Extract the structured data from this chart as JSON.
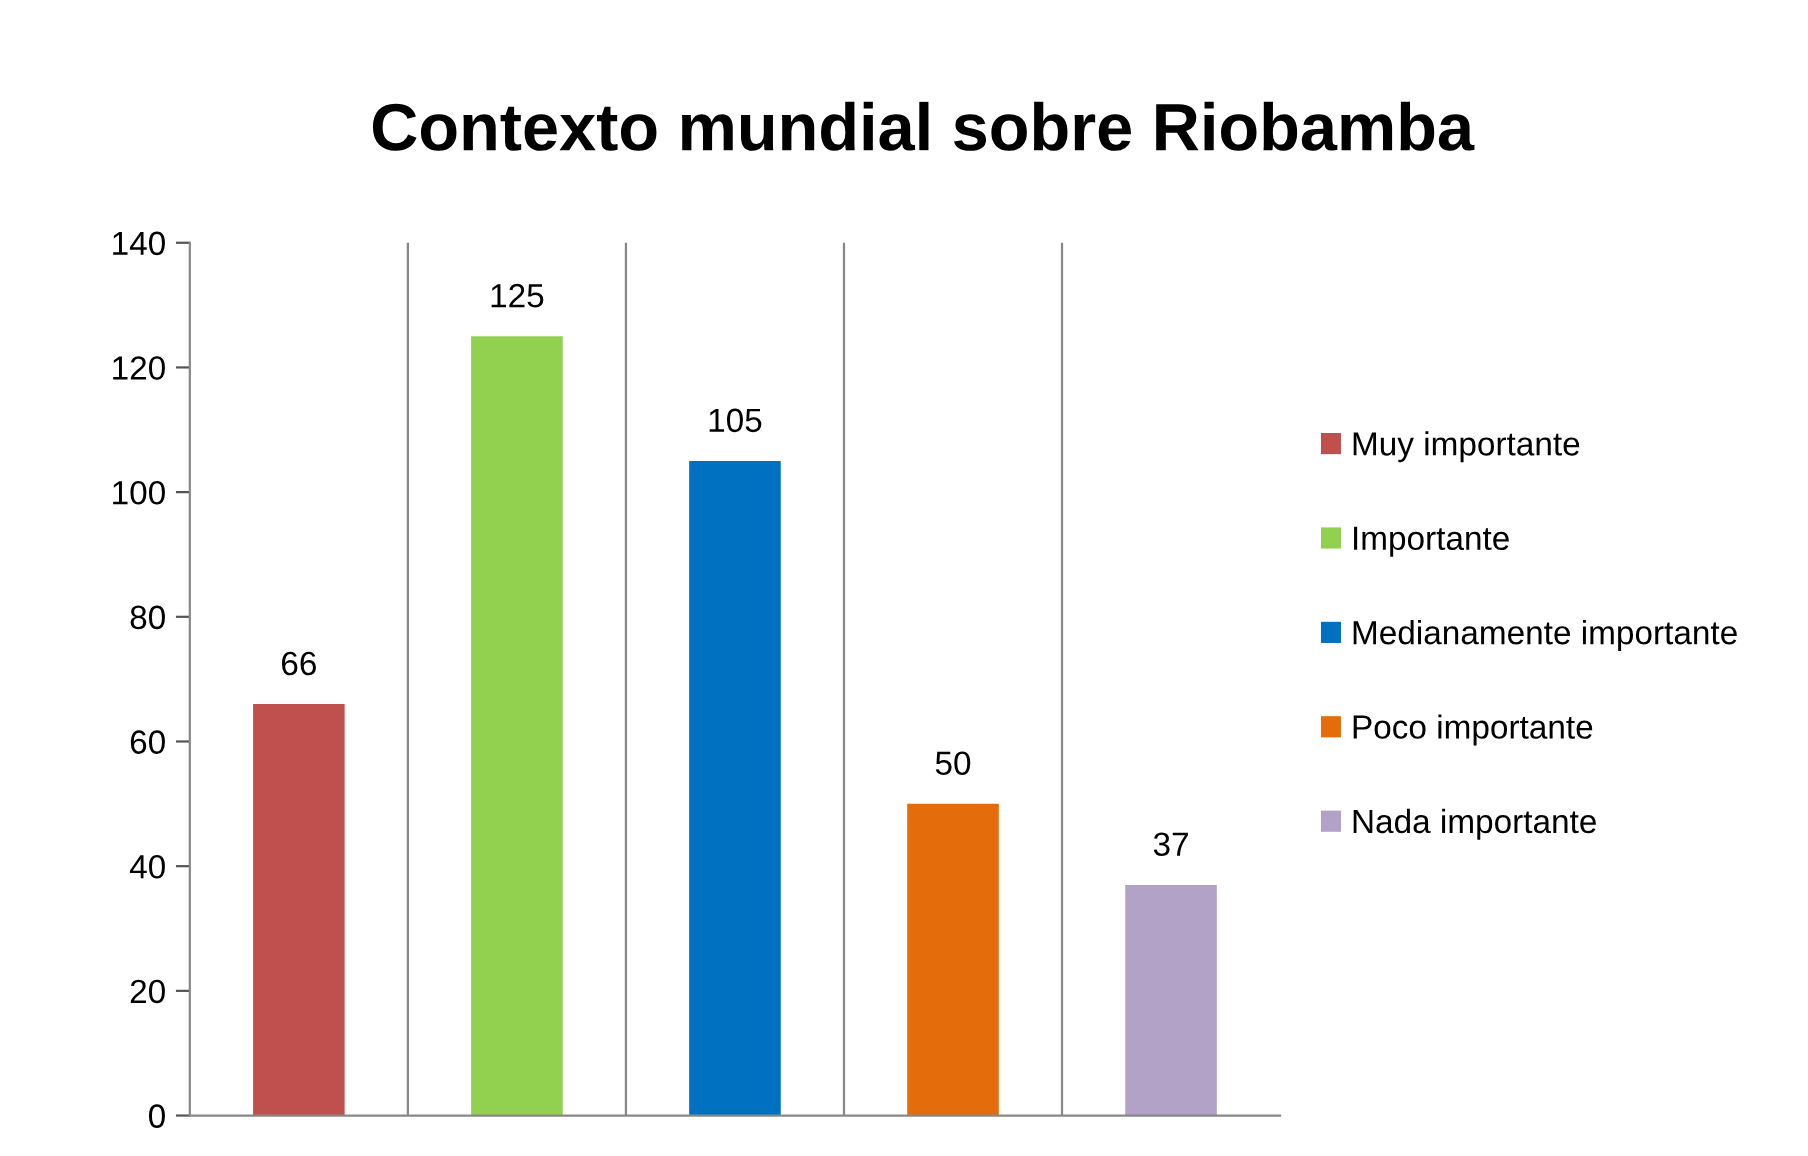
{
  "chart_data": {
    "type": "bar",
    "title": "Contexto mundial sobre Riobamba",
    "categories": [
      null,
      null,
      null,
      null,
      null
    ],
    "series": [
      {
        "name": "Muy importante",
        "color": "#c0504d",
        "values": [
          66,
          null,
          null,
          null,
          null
        ]
      },
      {
        "name": "Importante",
        "color": "#92d050",
        "values": [
          null,
          125,
          null,
          null,
          null
        ]
      },
      {
        "name": "Medianamente importante",
        "color": "#0070c0",
        "values": [
          null,
          null,
          105,
          null,
          null
        ]
      },
      {
        "name": "Poco importante",
        "color": "#e46c0a",
        "values": [
          null,
          null,
          null,
          50,
          null
        ]
      },
      {
        "name": "Nada importante",
        "color": "#b3a2c7",
        "values": [
          null,
          null,
          null,
          null,
          37
        ]
      }
    ],
    "ylim": [
      0,
      140
    ],
    "yticks": [
      0,
      20,
      40,
      60,
      80,
      100,
      120,
      140
    ],
    "grid": "x",
    "legend": "right",
    "data_labels": true
  }
}
